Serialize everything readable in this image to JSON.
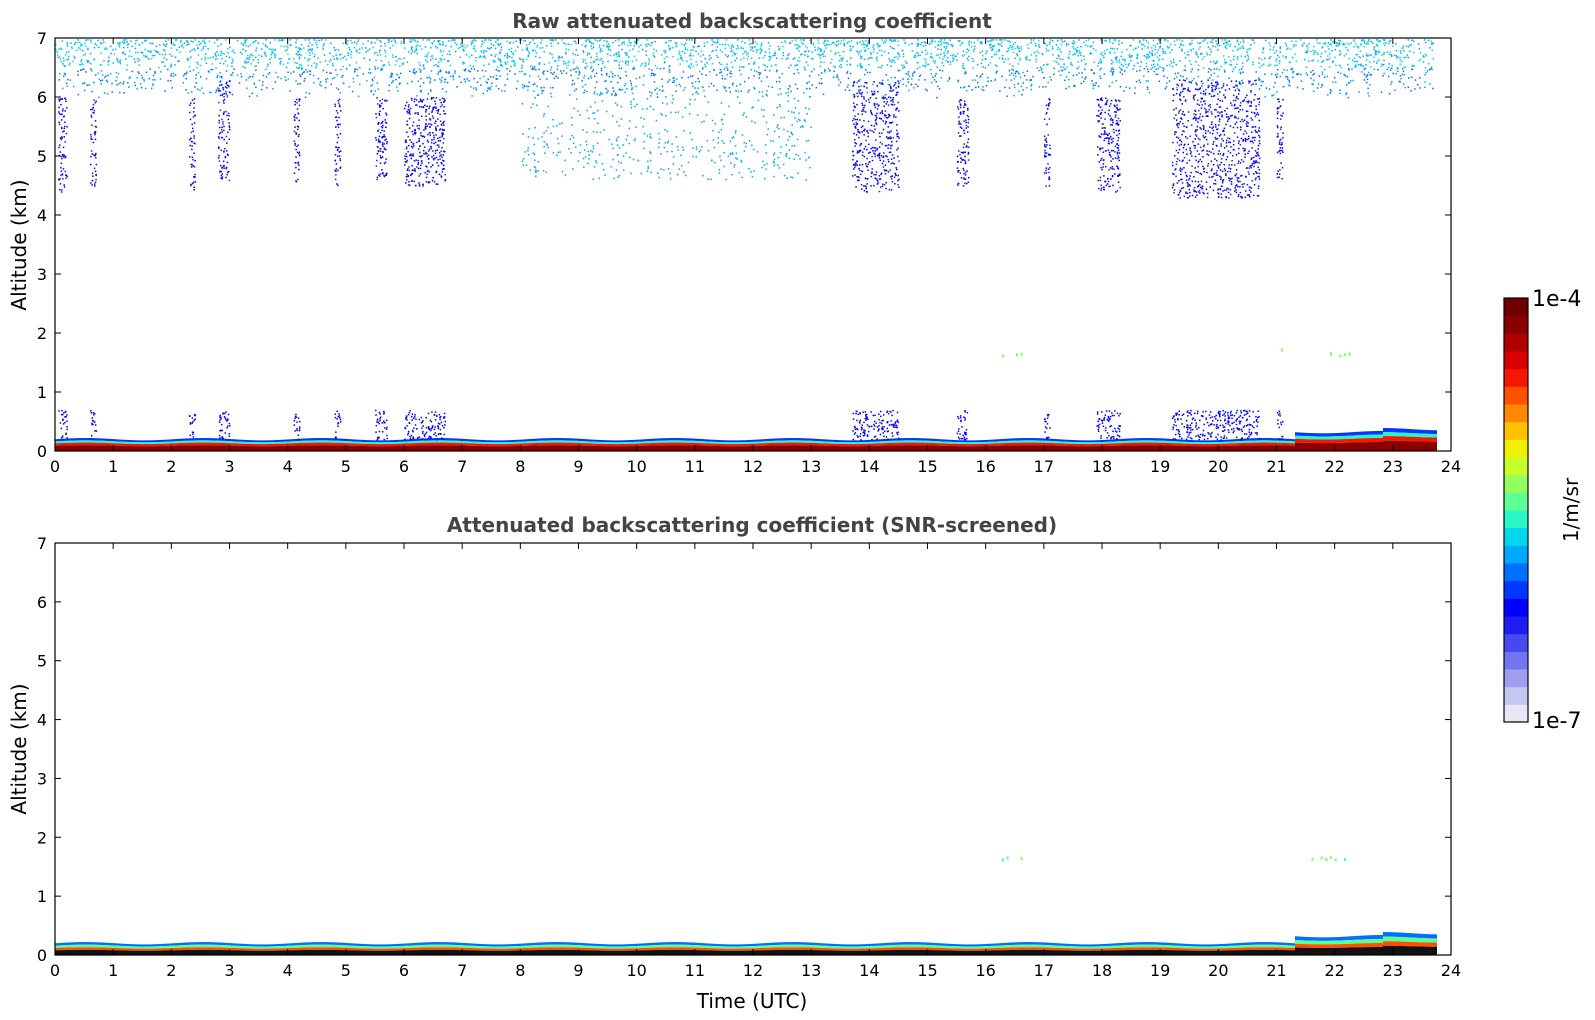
{
  "chart_data": [
    {
      "type": "heatmap",
      "title": "Raw attenuated backscattering coefficient",
      "xlabel": "",
      "ylabel": "Altitude (km)",
      "xlim": [
        0,
        24
      ],
      "ylim": [
        0,
        7
      ],
      "x_ticks": [
        "0",
        "1",
        "2",
        "3",
        "4",
        "5",
        "6",
        "7",
        "8",
        "9",
        "10",
        "11",
        "12",
        "13",
        "14",
        "15",
        "16",
        "17",
        "18",
        "19",
        "20",
        "21",
        "22",
        "23",
        "24"
      ],
      "y_ticks": [
        "0",
        "1",
        "2",
        "3",
        "4",
        "5",
        "6",
        "7"
      ],
      "features": {
        "surface_layer_top_km": 0.2,
        "data_end_hour": 23.75,
        "upper_noise_base_km": 6.0,
        "cloud_columns": [
          {
            "start": 0.05,
            "end": 0.2,
            "bottom_km": 4.4,
            "top_km": 6.0
          },
          {
            "start": 0.6,
            "end": 0.7,
            "bottom_km": 4.5,
            "top_km": 6.0
          },
          {
            "start": 2.3,
            "end": 2.4,
            "bottom_km": 4.4,
            "top_km": 6.0
          },
          {
            "start": 2.8,
            "end": 3.0,
            "bottom_km": 4.5,
            "top_km": 6.3
          },
          {
            "start": 4.1,
            "end": 4.2,
            "bottom_km": 4.5,
            "top_km": 6.0
          },
          {
            "start": 4.8,
            "end": 4.9,
            "bottom_km": 4.5,
            "top_km": 6.0
          },
          {
            "start": 5.5,
            "end": 5.7,
            "bottom_km": 4.6,
            "top_km": 6.0
          },
          {
            "start": 6.0,
            "end": 6.7,
            "bottom_km": 4.5,
            "top_km": 6.0
          },
          {
            "start": 13.7,
            "end": 14.5,
            "bottom_km": 4.4,
            "top_km": 6.3
          },
          {
            "start": 15.5,
            "end": 15.7,
            "bottom_km": 4.5,
            "top_km": 6.0
          },
          {
            "start": 17.0,
            "end": 17.1,
            "bottom_km": 4.5,
            "top_km": 6.0
          },
          {
            "start": 17.9,
            "end": 18.3,
            "bottom_km": 4.4,
            "top_km": 6.0
          },
          {
            "start": 19.2,
            "end": 20.7,
            "bottom_km": 4.3,
            "top_km": 6.3
          },
          {
            "start": 21.0,
            "end": 21.1,
            "bottom_km": 4.6,
            "top_km": 6.0
          }
        ],
        "thin_layers": [
          {
            "start": 16.2,
            "end": 16.6,
            "altitude_km": 1.65
          },
          {
            "start": 21.0,
            "end": 21.1,
            "altitude_km": 1.75
          },
          {
            "start": 21.6,
            "end": 22.3,
            "altitude_km": 1.65
          }
        ]
      }
    },
    {
      "type": "heatmap",
      "title": "Attenuated backscattering coefficient (SNR-screened)",
      "xlabel": "Time (UTC)",
      "ylabel": "Altitude (km)",
      "xlim": [
        0,
        24
      ],
      "ylim": [
        0,
        7
      ],
      "x_ticks": [
        "0",
        "1",
        "2",
        "3",
        "4",
        "5",
        "6",
        "7",
        "8",
        "9",
        "10",
        "11",
        "12",
        "13",
        "14",
        "15",
        "16",
        "17",
        "18",
        "19",
        "20",
        "21",
        "22",
        "23",
        "24"
      ],
      "y_ticks": [
        "0",
        "1",
        "2",
        "3",
        "4",
        "5",
        "6",
        "7"
      ],
      "features": {
        "surface_layer_top_km": 0.2,
        "data_end_hour": 23.75,
        "thin_layers": [
          {
            "start": 16.2,
            "end": 16.6,
            "altitude_km": 1.65
          },
          {
            "start": 21.6,
            "end": 22.3,
            "altitude_km": 1.65
          }
        ]
      }
    }
  ],
  "colorbar": {
    "label": "1/m/sr",
    "max_label": "1e-4",
    "min_label": "1e-7",
    "colors": [
      "#e6e6f5",
      "#c6c6f2",
      "#9f9ff0",
      "#7474f0",
      "#4848f0",
      "#1e1ef2",
      "#0000ff",
      "#0038ff",
      "#0070ff",
      "#00a8ff",
      "#00d8f0",
      "#29f5c6",
      "#5cff93",
      "#93ff5c",
      "#c6ff29",
      "#f0f000",
      "#ffc000",
      "#ff8800",
      "#ff5000",
      "#f51800",
      "#d80000",
      "#b00000",
      "#8a0000",
      "#700000"
    ]
  }
}
